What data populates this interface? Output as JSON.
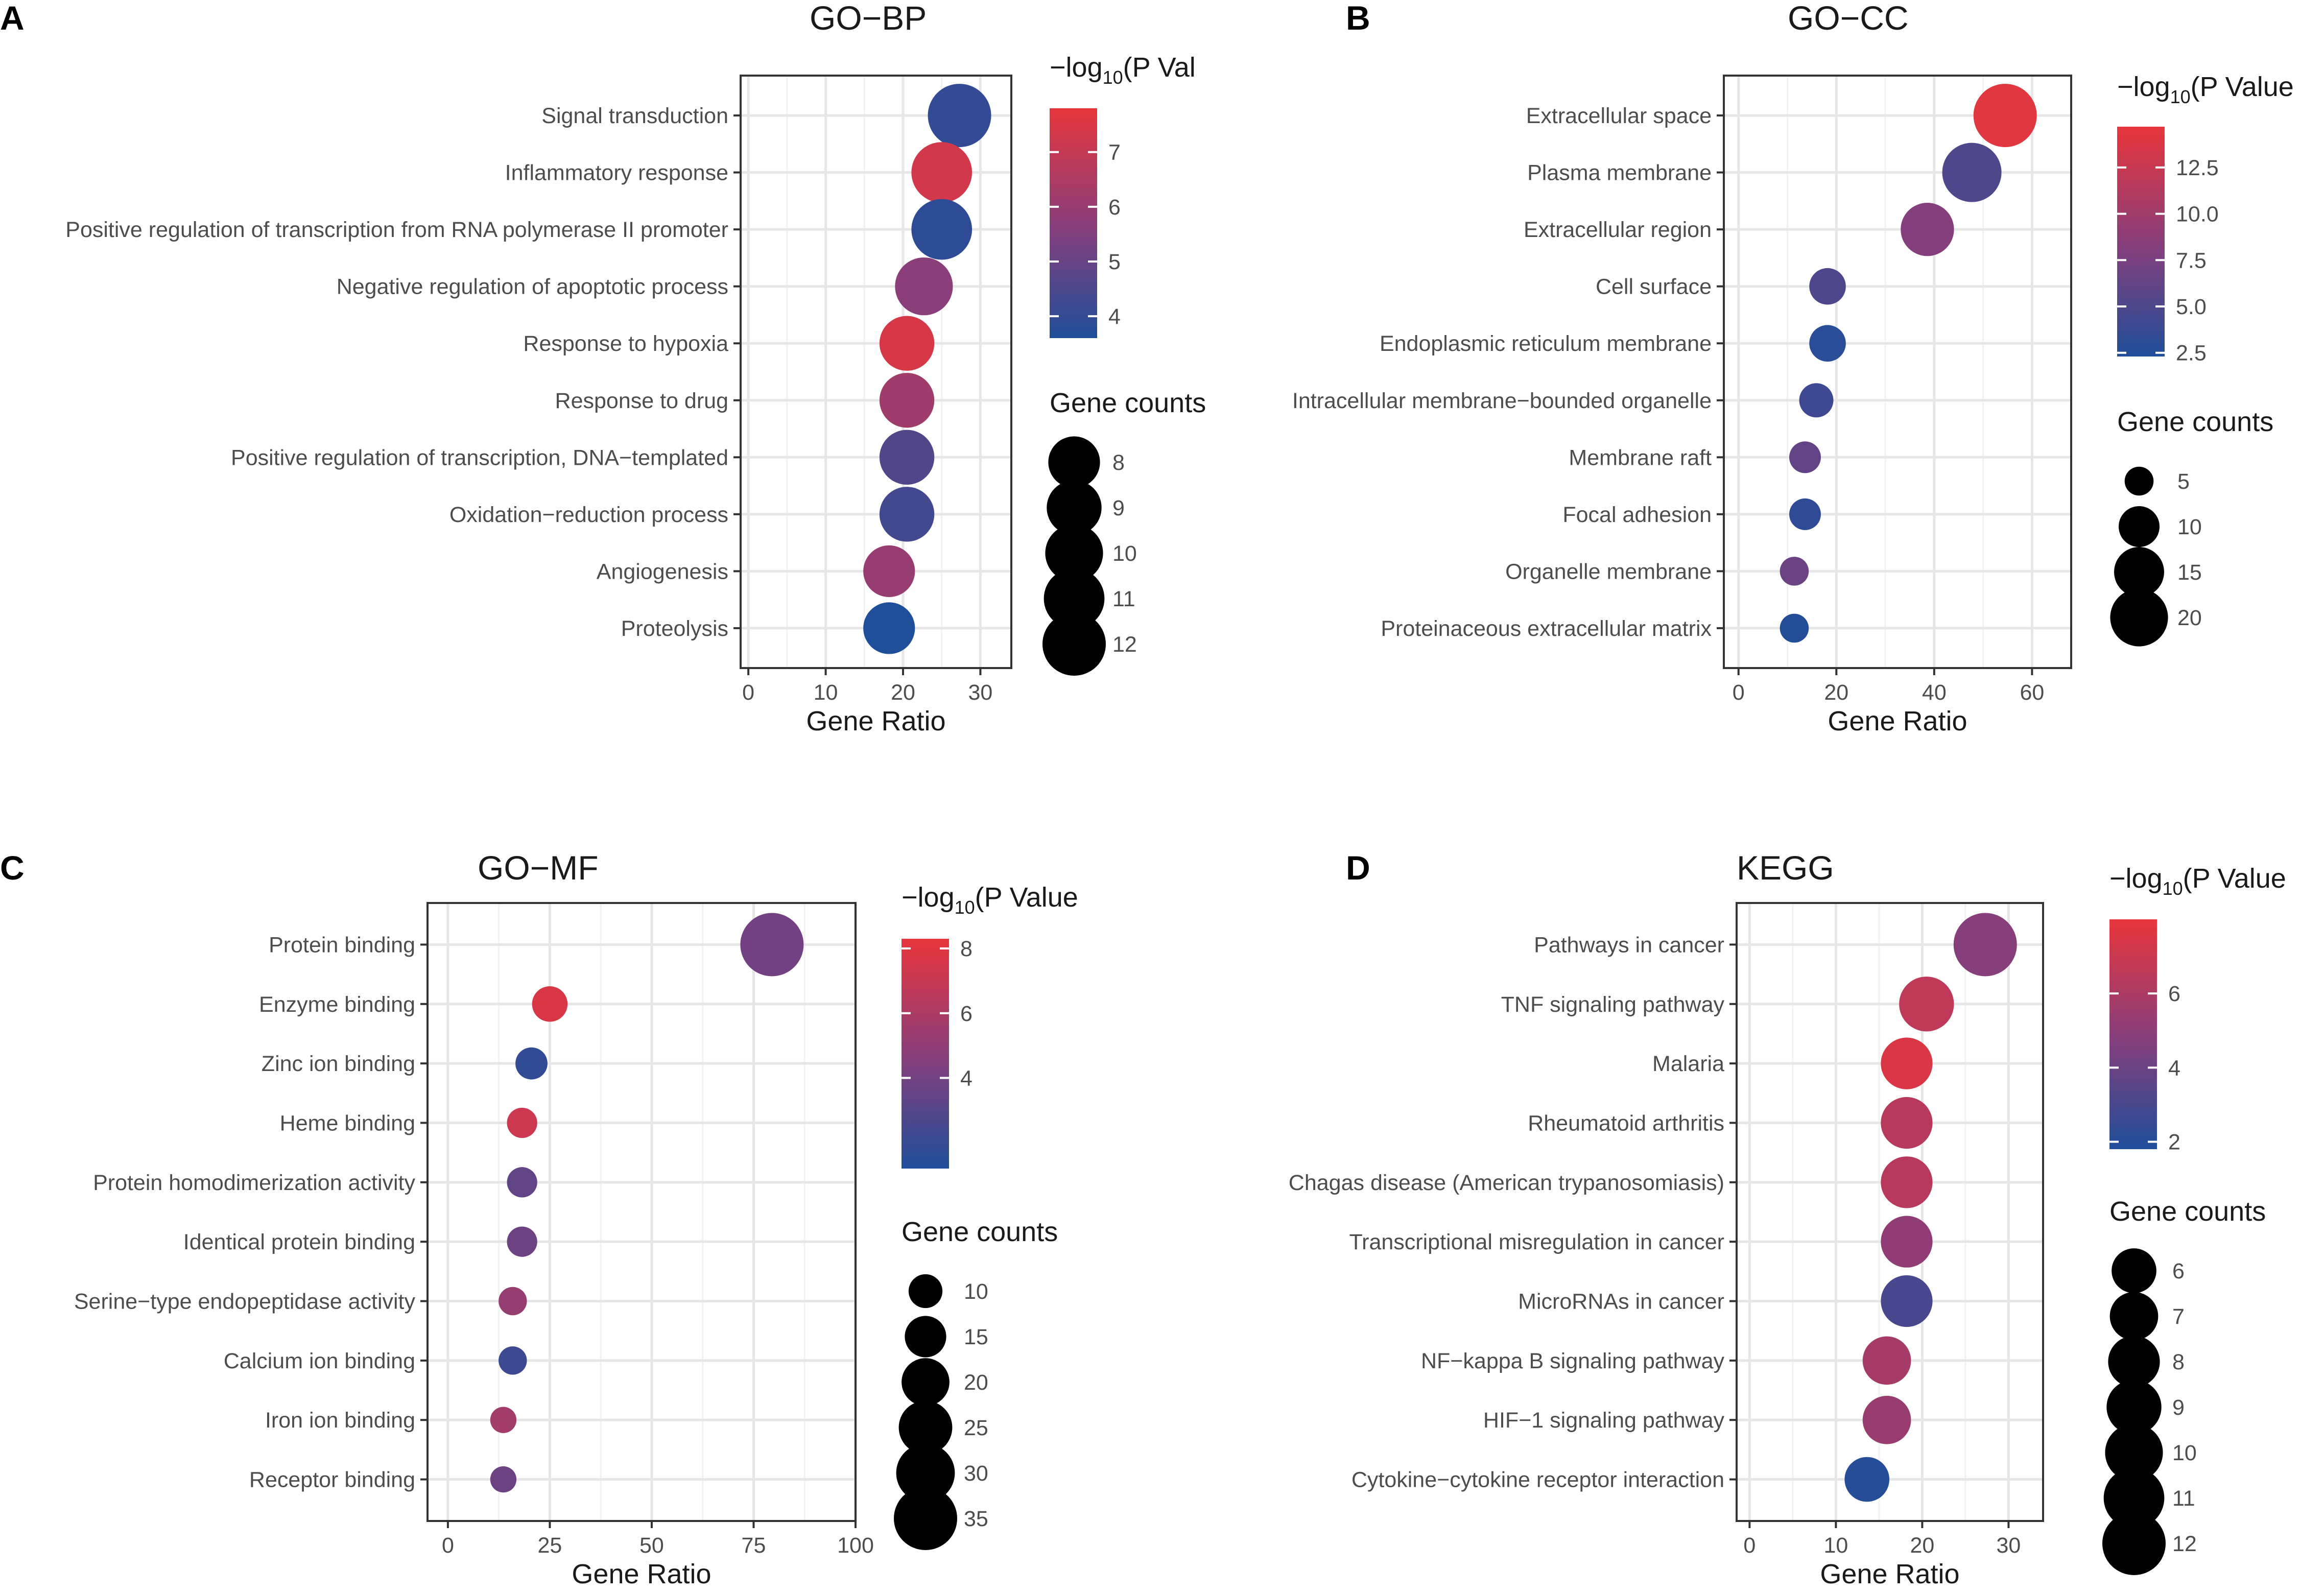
{
  "figure": {
    "legend_titles": {
      "pvalue": "P Value",
      "pvalue_truncated": "P Val",
      "log_prefix": "−log",
      "log_sub": "10",
      "gene_counts": "Gene counts"
    }
  },
  "colors": {
    "low": "#1f4e9a",
    "mid": "#8a3e7a",
    "high": "#e8363c",
    "grid": "#e6e6e6",
    "panel_border": "#333333",
    "text": "#4d4d4d"
  },
  "chart_data": [
    {
      "panel_label": "A",
      "type": "scatter",
      "title": "GO−BP",
      "xlabel": "Gene Ratio",
      "xlim": [
        -1,
        34
      ],
      "xticks": [
        0,
        10,
        20,
        30
      ],
      "categories": [
        "Signal transduction",
        "Inflammatory response",
        "Positive regulation of transcription from RNA polymerase II promoter",
        "Negative regulation of apoptotic process",
        "Response to hypoxia",
        "Response to drug",
        "Positive regulation of transcription, DNA−templated",
        "Oxidation−reduction process",
        "Angiogenesis",
        "Proteolysis"
      ],
      "x": [
        27.3,
        25.0,
        25.0,
        22.7,
        20.5,
        20.5,
        20.5,
        20.5,
        18.2,
        18.2
      ],
      "counts": [
        12,
        11,
        11,
        10,
        9,
        9,
        9,
        9,
        8,
        8
      ],
      "neglog10p": [
        4.0,
        7.3,
        3.9,
        5.7,
        7.4,
        6.2,
        4.6,
        4.3,
        6.0,
        3.6
      ],
      "color_range": [
        3.6,
        7.8
      ],
      "color_ticks": [
        4,
        5,
        6,
        7
      ],
      "size_legend": [
        8,
        9,
        10,
        11,
        12
      ],
      "legend_title_truncated": true
    },
    {
      "panel_label": "B",
      "type": "scatter",
      "title": "GO−CC",
      "xlabel": "Gene Ratio",
      "xlim": [
        -3,
        68
      ],
      "xticks": [
        0,
        20,
        40,
        60
      ],
      "categories": [
        "Extracellular space",
        "Plasma membrane",
        "Extracellular region",
        "Cell surface",
        "Endoplasmic reticulum membrane",
        "Intracellular membrane−bounded organelle",
        "Membrane raft",
        "Focal adhesion",
        "Organelle membrane",
        "Proteinaceous extracellular matrix"
      ],
      "x": [
        54.5,
        47.7,
        38.6,
        18.2,
        18.2,
        15.9,
        13.6,
        13.6,
        11.4,
        11.4
      ],
      "counts": [
        24,
        21,
        17,
        8,
        8,
        7,
        6,
        6,
        5,
        5
      ],
      "neglog10p": [
        14.2,
        5.0,
        8.2,
        5.1,
        3.0,
        4.1,
        6.2,
        3.3,
        6.7,
        2.6
      ],
      "color_range": [
        2.3,
        14.7
      ],
      "color_ticks": [
        2.5,
        5.0,
        7.5,
        10.0,
        12.5
      ],
      "size_legend": [
        5,
        10,
        15,
        20
      ],
      "legend_title_truncated": false
    },
    {
      "panel_label": "C",
      "type": "scatter",
      "title": "GO−MF",
      "xlabel": "Gene Ratio",
      "xlim": [
        -5,
        100
      ],
      "xticks": [
        0,
        25,
        50,
        75,
        100
      ],
      "categories": [
        "Protein binding",
        "Enzyme binding",
        "Zinc ion binding",
        "Heme binding",
        "Protein homodimerization activity",
        "Identical protein binding",
        "Serine−type endopeptidase activity",
        "Calcium ion binding",
        "Iron ion binding",
        "Receptor binding"
      ],
      "x": [
        79.5,
        25.0,
        20.5,
        18.2,
        18.2,
        18.2,
        15.9,
        15.9,
        13.6,
        13.6
      ],
      "counts": [
        35,
        11,
        9,
        8,
        8,
        8,
        7,
        7,
        6,
        6
      ],
      "neglog10p": [
        4.0,
        7.7,
        1.8,
        7.2,
        3.4,
        3.8,
        5.2,
        2.2,
        5.6,
        3.8
      ],
      "color_range": [
        1.2,
        8.3
      ],
      "color_ticks": [
        4,
        6,
        8
      ],
      "size_legend": [
        10,
        15,
        20,
        25,
        30,
        35
      ],
      "legend_title_truncated": false
    },
    {
      "panel_label": "D",
      "type": "scatter",
      "title": "KEGG",
      "xlabel": "Gene Ratio",
      "xlim": [
        -1.5,
        34
      ],
      "xticks": [
        0,
        10,
        20,
        30
      ],
      "categories": [
        "Pathways in cancer",
        "TNF signaling pathway",
        "Malaria",
        "Rheumatoid arthritis",
        "Chagas disease (American trypanosomiasis)",
        "Transcriptional misregulation in cancer",
        "MicroRNAs in cancer",
        "NF−kappa B signaling pathway",
        "HIF−1 signaling pathway",
        "Cytokine−cytokine receptor interaction"
      ],
      "x": [
        27.3,
        20.5,
        18.2,
        18.2,
        18.2,
        18.2,
        18.2,
        15.9,
        15.9,
        13.6
      ],
      "counts": [
        12,
        9,
        8,
        8,
        8,
        8,
        8,
        7,
        7,
        6
      ],
      "neglog10p": [
        4.8,
        6.6,
        7.5,
        6.4,
        6.4,
        5.1,
        3.0,
        5.8,
        5.4,
        2.0
      ],
      "color_range": [
        1.8,
        8.0
      ],
      "color_ticks": [
        2,
        4,
        6
      ],
      "size_legend": [
        6,
        7,
        8,
        9,
        10,
        11,
        12
      ],
      "legend_title_truncated": false
    }
  ]
}
